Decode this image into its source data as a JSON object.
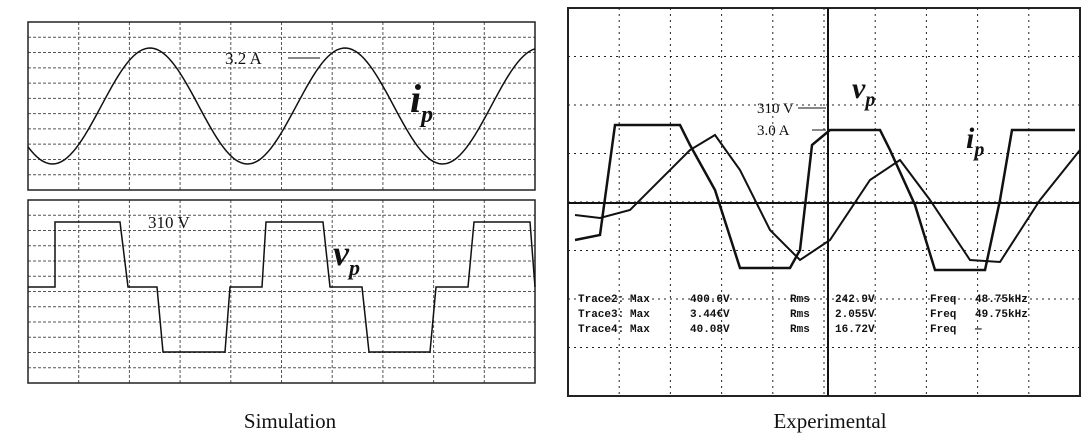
{
  "simulation": {
    "current_label": "3.2 A",
    "current_symbol": "i",
    "current_sub": "p",
    "voltage_label": "310 V",
    "voltage_symbol": "v",
    "voltage_sub": "p",
    "caption": "Simulation"
  },
  "experimental": {
    "voltage_label": "310 V",
    "current_label": "3.0 A",
    "voltage_symbol": "v",
    "voltage_sub": "p",
    "current_symbol": "i",
    "current_sub": "p",
    "measurements": [
      [
        "Trace2:",
        "Max",
        "400.6V",
        "Rms",
        "242.9V",
        "Freq",
        "48.75kHz"
      ],
      [
        "Trace3:",
        "Max",
        "3.44€V",
        "Rms",
        "2.055V",
        "Freq",
        "49.75kHz"
      ],
      [
        "Trace4:",
        "Max",
        "40.08V",
        "Rms",
        "16.72V",
        "Freq",
        "—"
      ]
    ],
    "caption": "Experimental"
  }
}
